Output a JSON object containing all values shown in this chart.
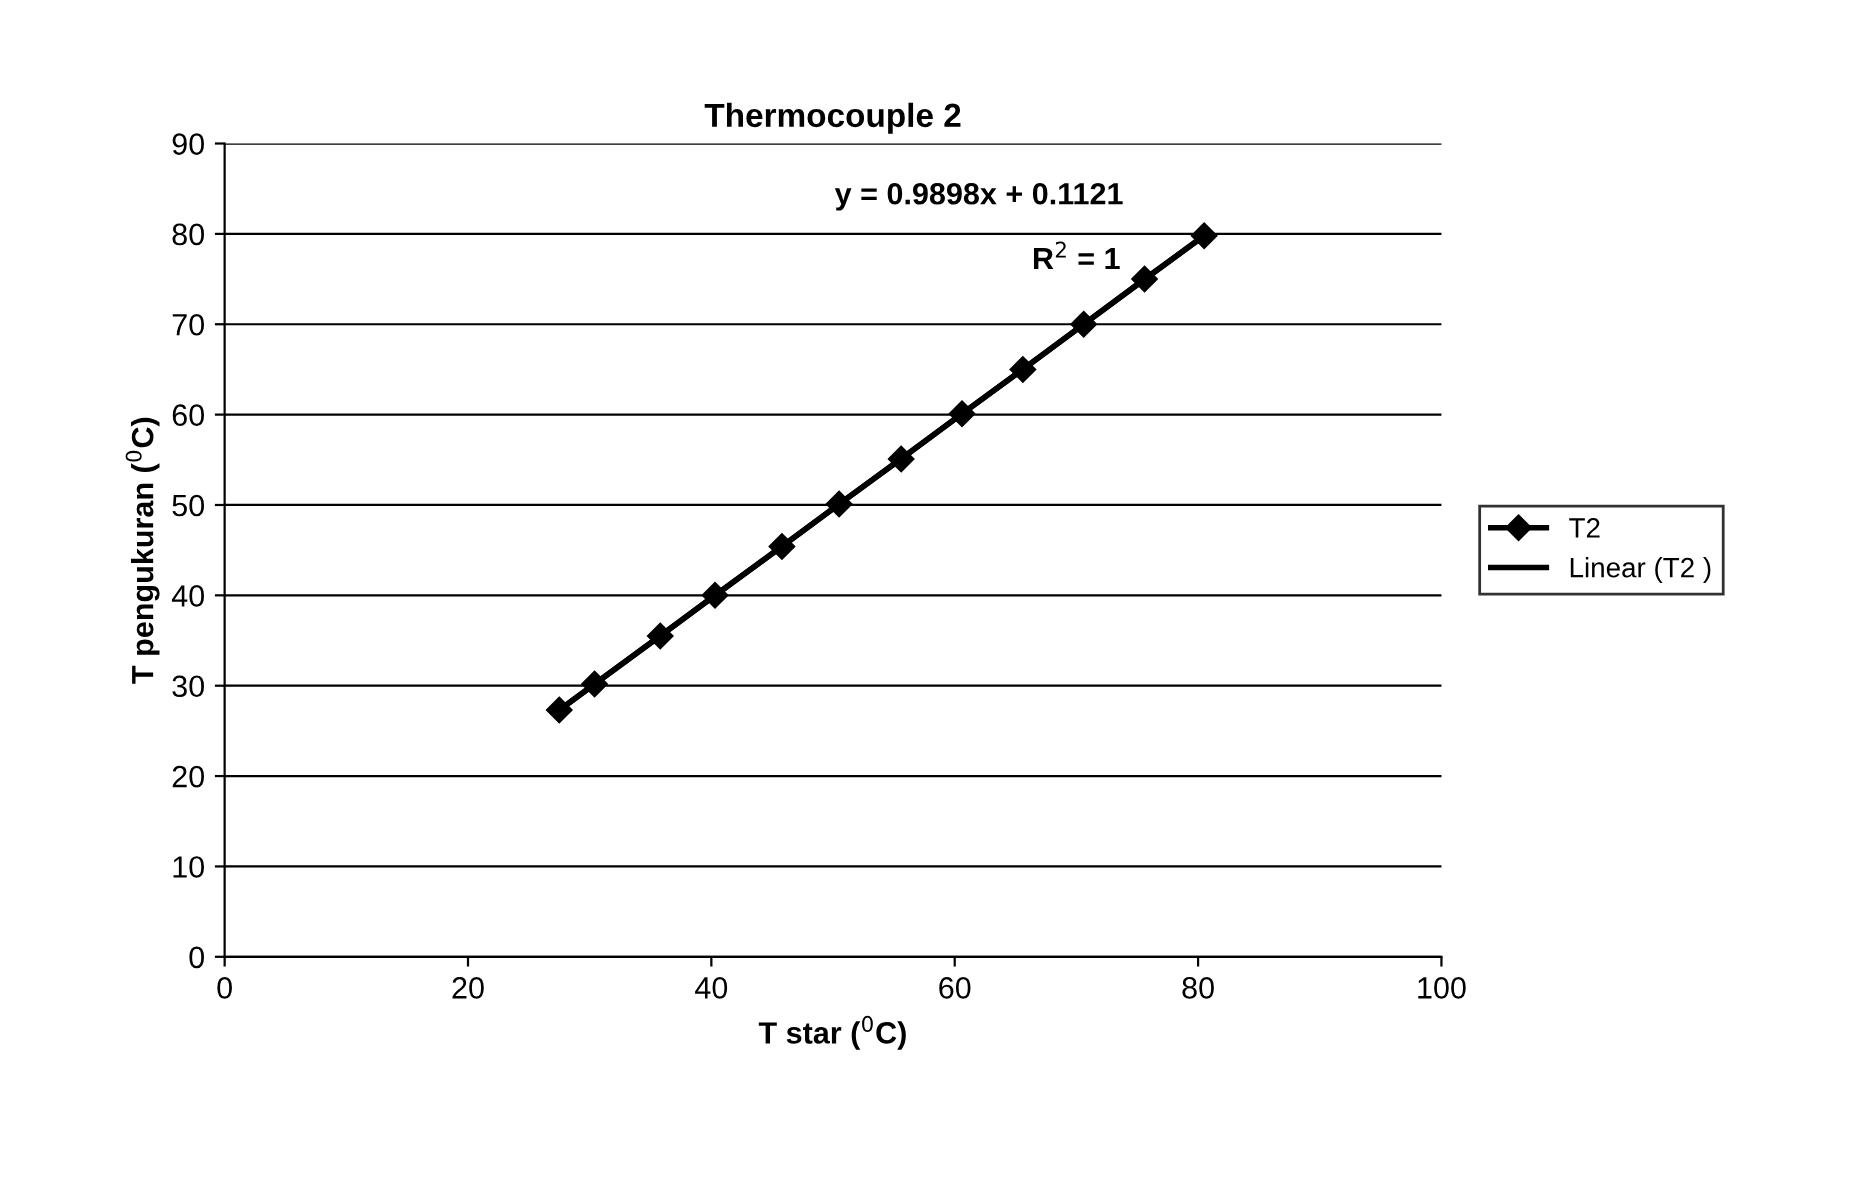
{
  "chart_data": {
    "type": "line",
    "title": "Thermocouple 2",
    "xlabel": "T star ($^{0}$C)",
    "ylabel": "T pengukuran ($^{0}$C)",
    "xlim": [
      0,
      100
    ],
    "xticks": [
      0,
      20,
      40,
      60,
      80,
      100
    ],
    "ylim": [
      0,
      90
    ],
    "yticks": [
      0,
      10,
      20,
      30,
      40,
      50,
      60,
      70,
      80,
      90
    ],
    "grid": "y",
    "legend": "right",
    "annotations": [
      "y = 0.9898x + 0.1121",
      "R$^{2}$ = 1"
    ],
    "series": [
      {
        "name": "T2",
        "marker": "diamond",
        "color": "#000000",
        "x": [
          27.5,
          30.4,
          35.8,
          40.3,
          45.8,
          50.5,
          55.6,
          60.6,
          65.6,
          70.6,
          75.6,
          80.5
        ],
        "values": [
          27.3,
          30.2,
          35.5,
          40,
          45.4,
          50.1,
          55.1,
          60.1,
          65,
          70,
          75,
          79.8
        ]
      },
      {
        "name": "Linear (T2 )",
        "marker": "none",
        "color": "#000000",
        "x": [
          27.5,
          80.5
        ],
        "values": [
          27.3,
          79.8
        ]
      }
    ]
  }
}
